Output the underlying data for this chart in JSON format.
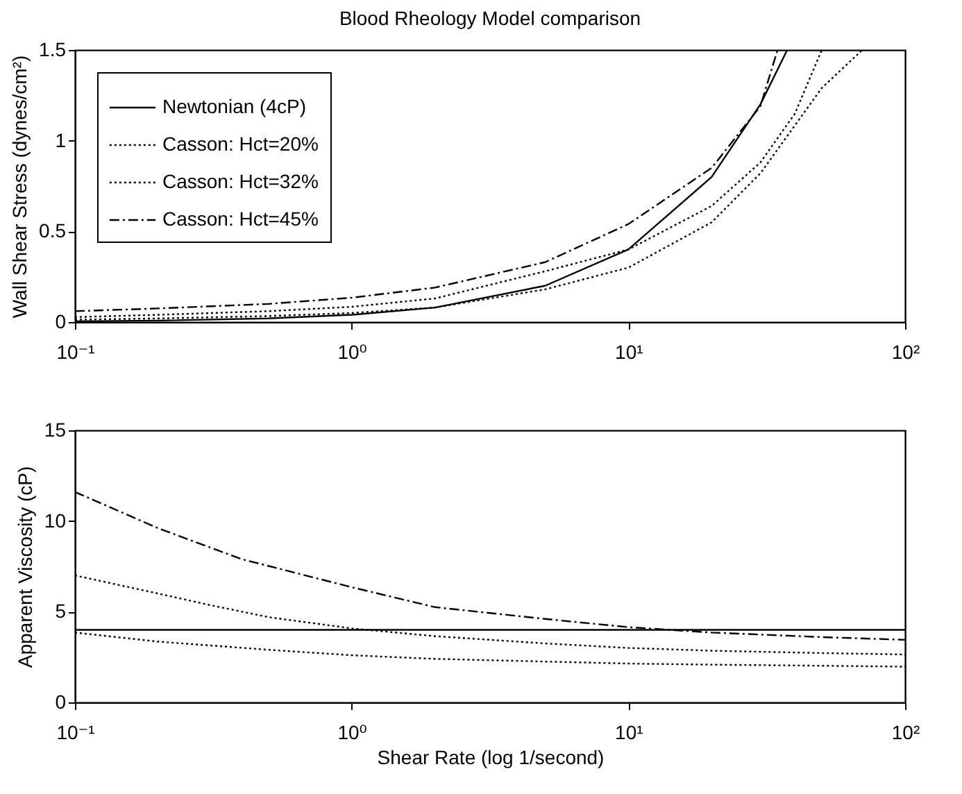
{
  "chart_data": [
    {
      "type": "line",
      "title": "Blood Rheology Model comparison",
      "ylabel": "Wall Shear Stress (dynes/cm²)",
      "log": "x",
      "xlim": [
        0.1,
        100
      ],
      "xticks": [
        {
          "value": 0.1,
          "label": "10⁻¹"
        },
        {
          "value": 1,
          "label": "10⁰"
        },
        {
          "value": 10,
          "label": "10¹"
        },
        {
          "value": 100,
          "label": "10²"
        }
      ],
      "ylim": [
        0,
        1.5
      ],
      "yticks": [
        0,
        0.5,
        1,
        1.5
      ],
      "grid": false,
      "legend": "top left",
      "marker": "none",
      "series": [
        {
          "name": "Newtonian (4cP)",
          "color": "#000000",
          "line_style": "solid",
          "x": [
            0.1,
            0.2,
            0.5,
            1,
            2,
            5,
            10,
            20,
            30,
            37.5
          ],
          "values": [
            0.004,
            0.008,
            0.02,
            0.04,
            0.08,
            0.2,
            0.4,
            0.8,
            1.2,
            1.5
          ]
        },
        {
          "name": "Casson: Hct=20%",
          "color": "#000000",
          "line_style": "dotted",
          "x": [
            0.1,
            0.2,
            0.5,
            1,
            2,
            5,
            10,
            20,
            30,
            50,
            70
          ],
          "values": [
            0.013,
            0.02,
            0.033,
            0.05,
            0.08,
            0.18,
            0.3,
            0.55,
            0.82,
            1.29,
            1.5
          ]
        },
        {
          "name": "Casson: Hct=32%",
          "color": "#000000",
          "line_style": "dotted",
          "x": [
            0.1,
            0.2,
            0.5,
            1,
            2,
            5,
            10,
            20,
            30,
            40,
            50
          ],
          "values": [
            0.027,
            0.04,
            0.06,
            0.084,
            0.13,
            0.28,
            0.4,
            0.64,
            0.88,
            1.15,
            1.5
          ]
        },
        {
          "name": "Casson: Hct=45%",
          "color": "#000000",
          "line_style": "dashdot",
          "x": [
            0.1,
            0.2,
            0.5,
            1,
            2,
            5,
            10,
            20,
            30,
            34.6
          ],
          "values": [
            0.06,
            0.075,
            0.1,
            0.134,
            0.19,
            0.33,
            0.54,
            0.85,
            1.19,
            1.5
          ]
        }
      ]
    },
    {
      "type": "line",
      "xlabel": "Shear Rate (log 1/second)",
      "ylabel": "Apparent Viscosity (cP)",
      "log": "x",
      "xlim": [
        0.1,
        100
      ],
      "xticks": [
        {
          "value": 0.1,
          "label": "10⁻¹"
        },
        {
          "value": 1,
          "label": "10⁰"
        },
        {
          "value": 10,
          "label": "10¹"
        },
        {
          "value": 100,
          "label": "10²"
        }
      ],
      "ylim": [
        0,
        15
      ],
      "yticks": [
        0,
        5,
        10,
        15
      ],
      "grid": false,
      "marker": "none",
      "series": [
        {
          "color": "#000000",
          "line_style": "solid",
          "x": [
            0.1,
            100
          ],
          "values": [
            4,
            4
          ]
        },
        {
          "color": "#000000",
          "line_style": "dotted",
          "x": [
            0.1,
            0.2,
            0.5,
            1,
            2,
            5,
            10,
            20,
            50,
            100
          ],
          "values": [
            3.85,
            3.35,
            2.9,
            2.6,
            2.4,
            2.25,
            2.14,
            2.08,
            2.02,
            1.97
          ]
        },
        {
          "color": "#000000",
          "line_style": "dotted",
          "x": [
            0.1,
            0.2,
            0.3,
            0.5,
            1,
            2,
            5,
            10,
            20,
            50,
            100
          ],
          "values": [
            7,
            6,
            5.4,
            4.7,
            4.08,
            3.65,
            3.25,
            3,
            2.85,
            2.72,
            2.64
          ]
        },
        {
          "color": "#000000",
          "line_style": "dashdot",
          "x": [
            0.1,
            0.2,
            0.4,
            1,
            2,
            5,
            10,
            20,
            50,
            100
          ],
          "values": [
            11.6,
            9.6,
            7.9,
            6.35,
            5.25,
            4.6,
            4.15,
            3.85,
            3.6,
            3.45
          ]
        }
      ]
    }
  ]
}
